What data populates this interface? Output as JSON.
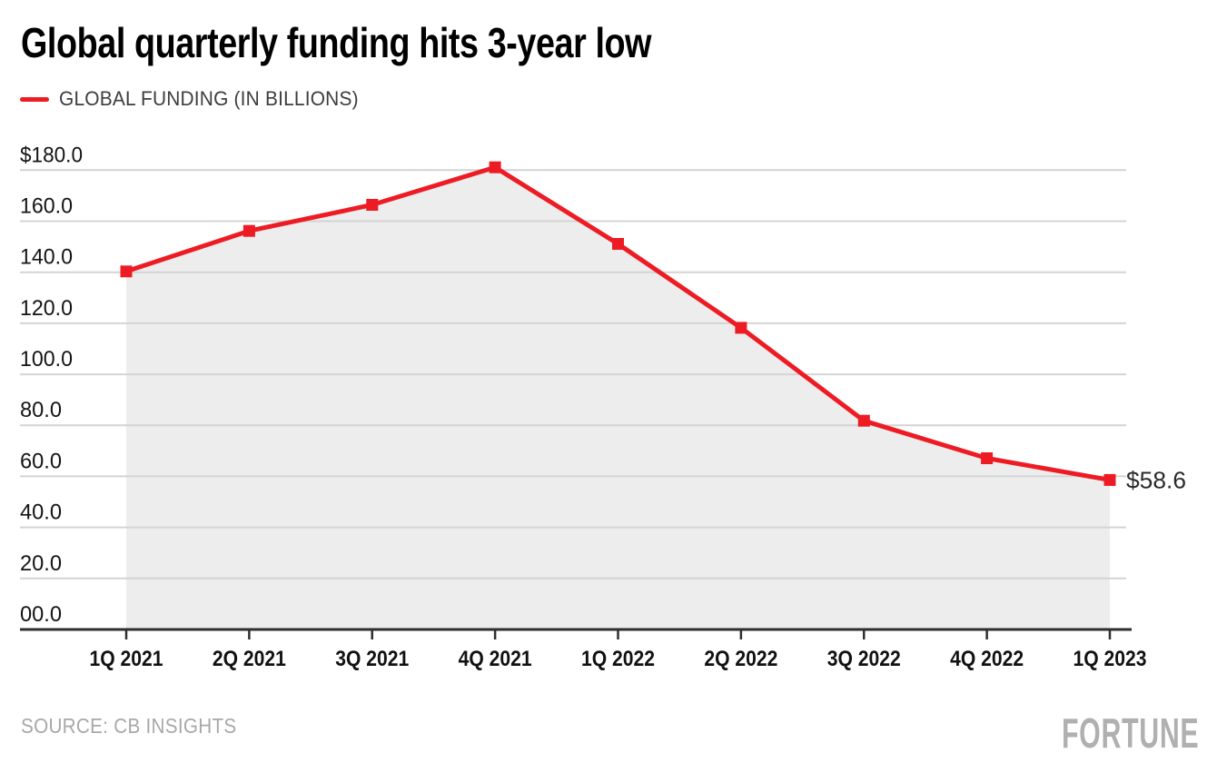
{
  "header": {
    "legend": {
      "swatch_color": "#ED1C24"
    }
  },
  "chart_data": {
    "type": "line",
    "title": "Global quarterly funding hits 3-year low",
    "categories": [
      "1Q 2021",
      "2Q 2021",
      "3Q 2021",
      "4Q 2021",
      "1Q 2022",
      "2Q 2022",
      "3Q 2022",
      "4Q 2022",
      "1Q 2023"
    ],
    "series": [
      {
        "name": "GLOBAL FUNDING (IN BILLIONS)",
        "values": [
          140.3,
          156.2,
          166.4,
          181.1,
          151.1,
          118.2,
          81.8,
          67.1,
          58.6
        ]
      }
    ],
    "xlabel": "",
    "ylabel": "",
    "ylim": [
      0,
      180
    ],
    "y_ticks": [
      {
        "value": 180,
        "label": "$180.0"
      },
      {
        "value": 160,
        "label": "160.0"
      },
      {
        "value": 140,
        "label": "140.0"
      },
      {
        "value": 120,
        "label": "120.0"
      },
      {
        "value": 100,
        "label": "100.0"
      },
      {
        "value": 80,
        "label": "80.0"
      },
      {
        "value": 60,
        "label": "60.0"
      },
      {
        "value": 40,
        "label": "40.0"
      },
      {
        "value": 20,
        "label": "20.0"
      },
      {
        "value": 0,
        "label": "00.0"
      }
    ],
    "end_label": "$58.6",
    "grid": "horizontal",
    "legend_position": "top-left",
    "marker": "square",
    "line_color": "#ED1C24",
    "area_fill": "#EDEDED",
    "gridline_color": "#d4d4d4",
    "axis_color": "#2f2f2f",
    "tick_label_color": "#141414",
    "end_label_color": "#2b2b2b"
  },
  "footer": {
    "source": "SOURCE: CB INSIGHTS",
    "brand": "FORTUNE"
  }
}
